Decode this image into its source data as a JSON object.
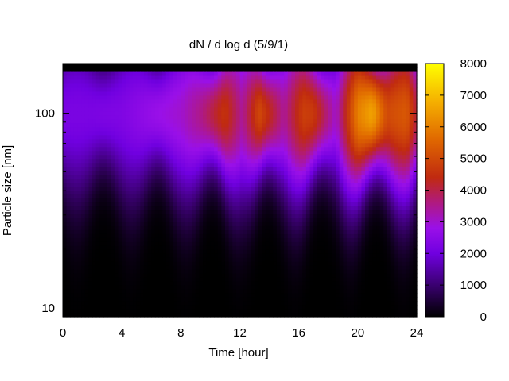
{
  "chart_data": {
    "type": "heatmap",
    "title": "dN / d log d (5/9/1)",
    "xlabel": "Time [hour]",
    "ylabel": "Particle size [nm]",
    "xlim": [
      0,
      24
    ],
    "ylim": [
      9,
      180
    ],
    "y_scale": "log",
    "x_ticks": [
      0,
      4,
      8,
      12,
      16,
      20,
      24
    ],
    "y_ticks": [
      10,
      100
    ],
    "colorbar": {
      "range": [
        0,
        8000
      ],
      "ticks": [
        0,
        1000,
        2000,
        3000,
        4000,
        5000,
        6000,
        7000,
        8000
      ],
      "palette": "black-purple-red-orange-yellow"
    },
    "mode_diameter_nm": 100,
    "hourly_peak_values": [
      {
        "hour": 0,
        "value": 2200
      },
      {
        "hour": 2,
        "value": 2200
      },
      {
        "hour": 4,
        "value": 2300
      },
      {
        "hour": 6,
        "value": 2700
      },
      {
        "hour": 8,
        "value": 3000
      },
      {
        "hour": 9.5,
        "value": 3600
      },
      {
        "hour": 11,
        "value": 4600
      },
      {
        "hour": 12.2,
        "value": 3400
      },
      {
        "hour": 13.3,
        "value": 5000
      },
      {
        "hour": 15,
        "value": 3400
      },
      {
        "hour": 16.3,
        "value": 4800
      },
      {
        "hour": 17,
        "value": 4700
      },
      {
        "hour": 18.5,
        "value": 3000
      },
      {
        "hour": 20,
        "value": 6000
      },
      {
        "hour": 21,
        "value": 6600
      },
      {
        "hour": 22,
        "value": 5000
      },
      {
        "hour": 23.3,
        "value": 5300
      },
      {
        "hour": 24,
        "value": 4000
      }
    ]
  }
}
